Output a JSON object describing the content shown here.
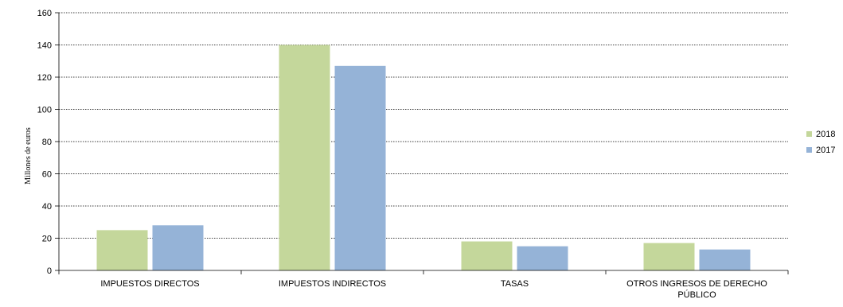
{
  "chart_data": {
    "type": "bar",
    "categories": [
      [
        "IMPUESTOS DIRECTOS"
      ],
      [
        "IMPUESTOS INDIRECTOS"
      ],
      [
        "TASAS"
      ],
      [
        "OTROS INGRESOS DE DERECHO",
        "PÚBLICO"
      ]
    ],
    "series": [
      {
        "name": "2018",
        "color": "#c4d79b",
        "values": [
          25,
          140,
          18,
          17
        ]
      },
      {
        "name": "2017",
        "color": "#95b3d7",
        "values": [
          28,
          127,
          15,
          13
        ]
      }
    ],
    "ylabel": "Millones de euros",
    "xlabel": "",
    "ylim": [
      0,
      160
    ],
    "yticks": [
      0,
      20,
      40,
      60,
      80,
      100,
      120,
      140,
      160
    ],
    "grid": true,
    "legend_position": "right"
  }
}
